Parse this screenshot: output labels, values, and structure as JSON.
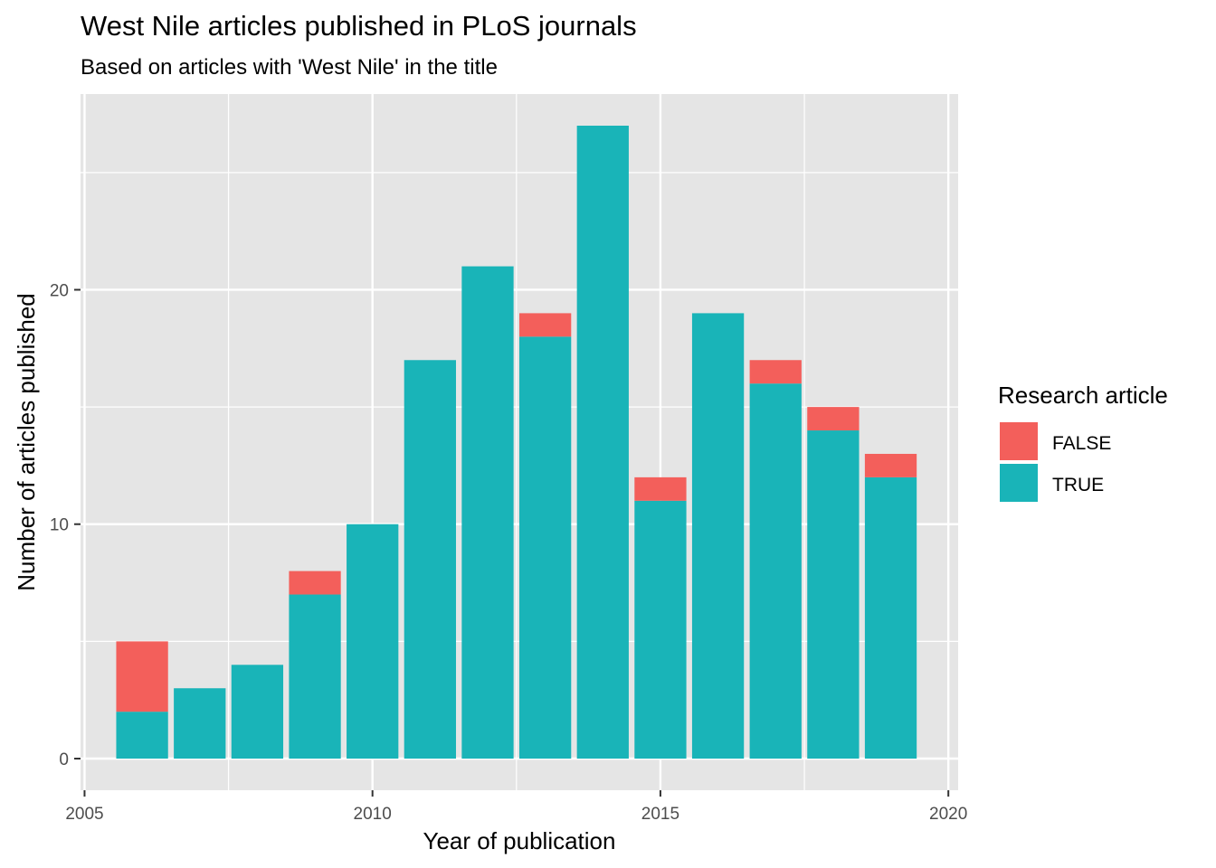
{
  "chart_data": {
    "type": "bar",
    "stacked": true,
    "title": "West Nile articles published in PLoS journals",
    "subtitle": "Based on articles with 'West Nile' in the title",
    "xlabel": "Year of publication",
    "ylabel": "Number of articles published",
    "xlim": [
      2004.93,
      2020.17
    ],
    "ylim": [
      -1.35,
      28.35
    ],
    "x_ticks": [
      2005,
      2010,
      2015,
      2020
    ],
    "y_ticks": [
      0,
      10,
      20
    ],
    "grid": true,
    "legend": {
      "title": "Research article",
      "placement": "right",
      "entries": [
        "FALSE",
        "TRUE"
      ]
    },
    "x": [
      2006,
      2007,
      2008,
      2009,
      2010,
      2011,
      2012,
      2013,
      2014,
      2015,
      2016,
      2017,
      2018,
      2019
    ],
    "series": [
      {
        "name": "TRUE",
        "color": "#19b4b8",
        "values": [
          2,
          3,
          4,
          7,
          10,
          17,
          21,
          18,
          27,
          11,
          19,
          16,
          14,
          12
        ]
      },
      {
        "name": "FALSE",
        "color": "#f35f5b",
        "values": [
          3,
          0,
          0,
          1,
          0,
          0,
          0,
          1,
          0,
          1,
          0,
          1,
          1,
          1
        ]
      }
    ]
  }
}
